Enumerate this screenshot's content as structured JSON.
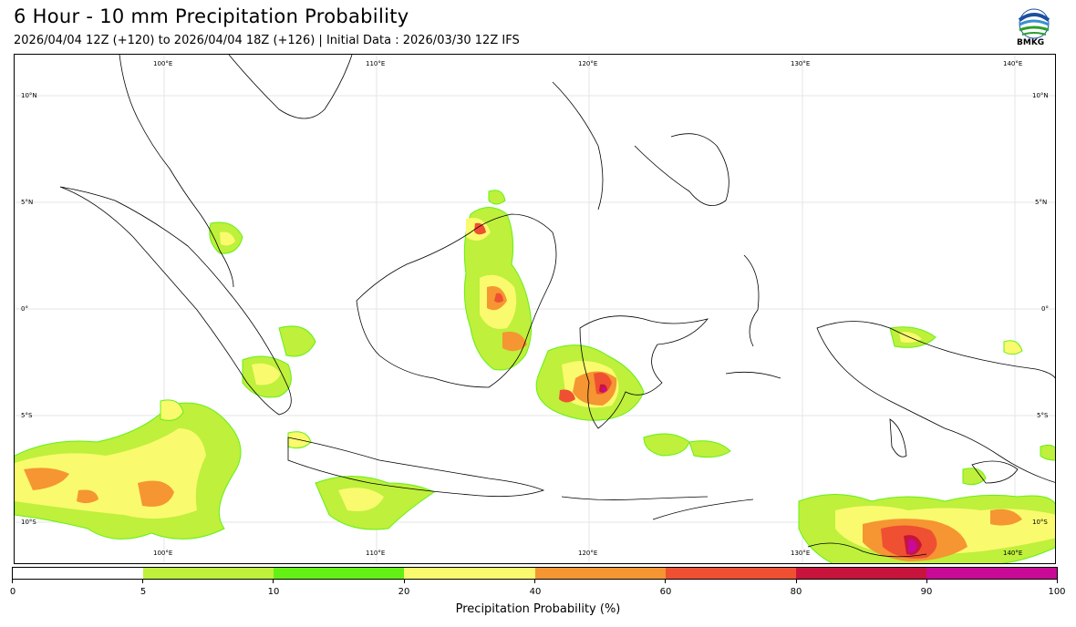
{
  "header": {
    "title": "6 Hour - 10 mm Precipitation Probability",
    "subtitle": "2026/04/04 12Z (+120) to 2026/04/04 18Z (+126) | Initial Data : 2026/03/30 12Z IFS",
    "logo_text": "BMKG"
  },
  "map": {
    "lon_labels_top": [
      "100°E",
      "110°E",
      "120°E",
      "130°E",
      "140°E"
    ],
    "lon_labels_bottom": [
      "100°E",
      "110°E",
      "120°E",
      "130°E",
      "140°E"
    ],
    "lat_labels_left": [
      "10°N",
      "5°N",
      "0°",
      "5°S",
      "10°S"
    ],
    "lat_labels_right": [
      "10°N",
      "5°N",
      "0°",
      "5°S",
      "10°S"
    ]
  },
  "colorbar": {
    "title": "Precipitation Probability (%)",
    "ticks": [
      "0",
      "5",
      "10",
      "20",
      "40",
      "60",
      "80",
      "90",
      "100"
    ],
    "colors": [
      "#ffffff",
      "#bef03c",
      "#64f014",
      "#fafa6e",
      "#f59632",
      "#f05032",
      "#c8143c",
      "#c80a96"
    ]
  }
}
